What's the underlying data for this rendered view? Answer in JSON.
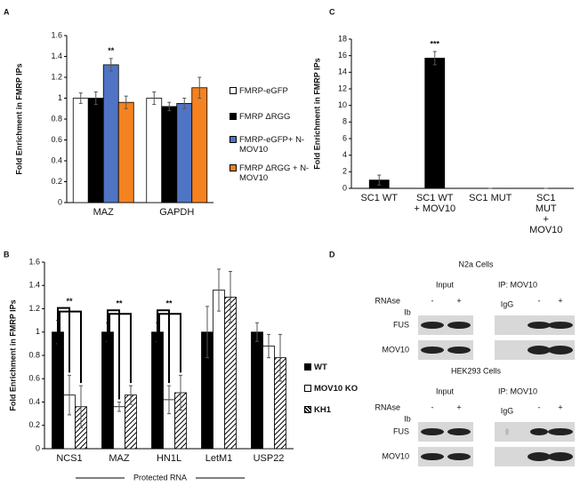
{
  "panel_labels": [
    "A",
    "B",
    "C",
    "D"
  ],
  "chart_data": [
    {
      "type": "bar",
      "y_label": "Fold Enrichment in FMRP IPs",
      "categories": [
        "MAZ",
        "GAPDH"
      ],
      "series": [
        {
          "name": "FMRP-eGFP",
          "color": "#ffffff",
          "values": [
            1.0,
            1.0
          ],
          "errors": [
            0.05,
            0.06
          ]
        },
        {
          "name": "FMRP ΔRGG",
          "color": "#000000",
          "values": [
            1.0,
            0.92
          ],
          "errors": [
            0.06,
            0.04
          ]
        },
        {
          "name": "FMRP-eGFP+ N-MOV10",
          "color": "#4f74c4",
          "values": [
            1.32,
            0.95
          ],
          "errors": [
            0.06,
            0.05
          ]
        },
        {
          "name": "FMRP ΔRGG + N-MOV10",
          "color": "#f58220",
          "values": [
            0.96,
            1.1
          ],
          "errors": [
            0.06,
            0.1
          ]
        }
      ],
      "ylim": [
        0,
        1.6
      ],
      "yticks": [
        0,
        0.2,
        0.4,
        0.6,
        0.8,
        1,
        1.2,
        1.4,
        1.6
      ],
      "annotations": [
        {
          "text": "**",
          "category": "MAZ",
          "series": "FMRP-eGFP+ N-MOV10"
        }
      ]
    },
    {
      "type": "bar",
      "y_label": "Fold Enrichment in FMRP IPs",
      "x_label": "Protected RNA",
      "categories": [
        "NCS1",
        "MAZ",
        "HN1L",
        "LetM1",
        "USP22"
      ],
      "series": [
        {
          "name": "WT",
          "color": "#000000",
          "values": [
            1,
            1,
            1,
            1,
            1
          ],
          "errors": [
            0.1,
            0.08,
            0.08,
            0.22,
            0.08
          ]
        },
        {
          "name": "MOV10 KO",
          "color": "#ffffff",
          "values": [
            0.46,
            0.36,
            0.42,
            1.36,
            0.88
          ],
          "errors": [
            0.17,
            0.04,
            0.12,
            0.18,
            0.1
          ]
        },
        {
          "name": "KH1",
          "color": "#ffffff",
          "hatch": true,
          "values": [
            0.36,
            0.46,
            0.48,
            1.3,
            0.78
          ],
          "errors": [
            0.18,
            0.08,
            0.15,
            0.22,
            0.2
          ]
        }
      ],
      "ylim": [
        0,
        1.6
      ],
      "yticks": [
        0,
        0.2,
        0.4,
        0.6,
        0.8,
        1,
        1.2,
        1.4,
        1.6
      ],
      "annotations": [
        {
          "text": "**",
          "category": "NCS1"
        },
        {
          "text": "**",
          "category": "MAZ"
        },
        {
          "text": "**",
          "category": "HN1L"
        }
      ]
    },
    {
      "type": "bar",
      "y_label": "Fold Enrichment in FMRP IPs",
      "categories": [
        "SC1 WT",
        "SC1 WT\n+ MOV10",
        "SC1 MUT",
        "SC1 MUT\n+ MOV10"
      ],
      "color": "#000000",
      "values": [
        1,
        15.7,
        0,
        0
      ],
      "errors": [
        0.6,
        0.8,
        0,
        0
      ],
      "ylim": [
        0,
        18
      ],
      "yticks": [
        0,
        2,
        4,
        6,
        8,
        10,
        12,
        14,
        16,
        18
      ],
      "annotations": [
        {
          "text": "***",
          "category": "SC1 WT\n+ MOV10"
        }
      ]
    }
  ],
  "blot": {
    "blocks": [
      {
        "title": "N2a Cells",
        "input_label": "Input",
        "ip_label": "IP: MOV10",
        "treatment_label": "RNAse",
        "signs": [
          "-",
          "+",
          "-",
          "+"
        ],
        "control_label": "IgG",
        "ib_label": "Ib",
        "rows": [
          "FUS",
          "MOV10"
        ]
      },
      {
        "title": "HEK293 Cells",
        "input_label": "Input",
        "ip_label": "IP: MOV10",
        "treatment_label": "RNAse",
        "signs": [
          "-",
          "+",
          "-",
          "+"
        ],
        "control_label": "IgG",
        "ib_label": "Ib",
        "rows": [
          "FUS",
          "MOV10"
        ]
      }
    ]
  }
}
